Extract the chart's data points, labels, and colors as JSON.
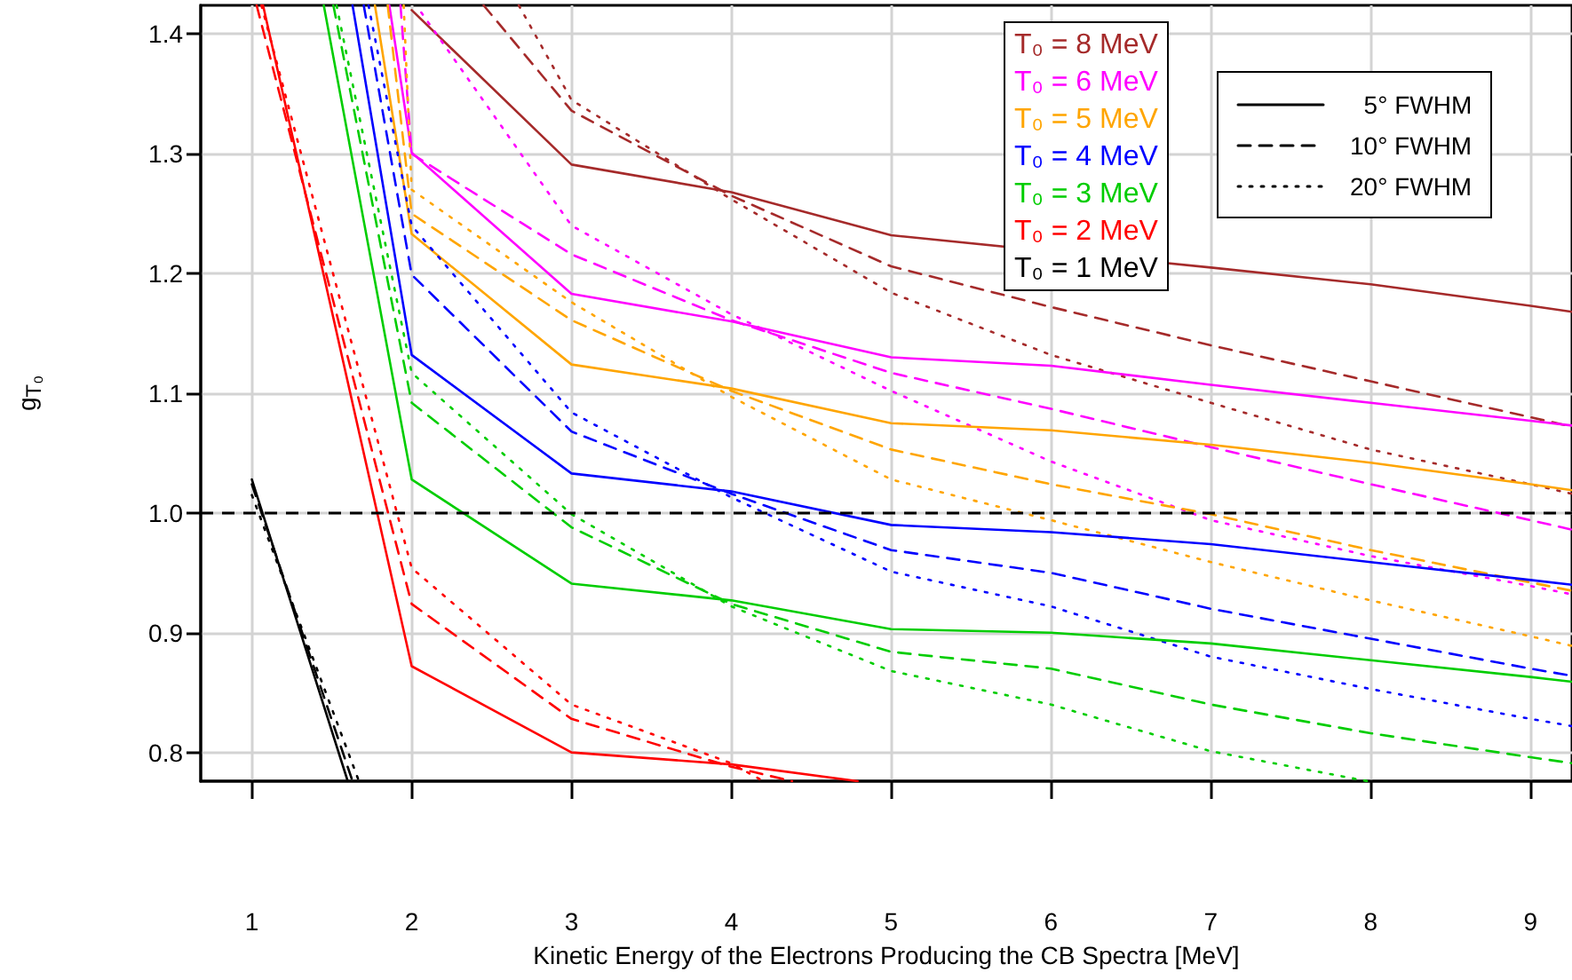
{
  "chart_data": {
    "type": "line",
    "xlabel": "Kinetic Energy of the Electrons Producing the CB Spectra [MeV]",
    "ylabel": "g$_{T₀}$",
    "xlim": [
      0.68,
      9.26
    ],
    "xticks": [
      1,
      2,
      3,
      4,
      5,
      6,
      7,
      8,
      9
    ],
    "ylim": [
      0.776,
      1.424
    ],
    "yticks": [
      0.8,
      0.9,
      {
        "value": 1,
        "label": "1.0"
      },
      1.1,
      1.2,
      1.3,
      1.4
    ],
    "grid": true,
    "legend": "top right",
    "marker": "none",
    "ref_lines": [
      {
        "axis": "y",
        "value": 1,
        "color": "#000000",
        "line_style": "dashed"
      }
    ],
    "annotations": [
      "5° FWHM",
      "10° FWHM",
      "20° FWHM"
    ],
    "series": [
      {
        "name": "T₀ = 8 MeV",
        "color": "#a52a2a",
        "line_style": "solid",
        "x": [
          2,
          3,
          4,
          5,
          7,
          8,
          9,
          9.26
        ],
        "values": [
          1.42,
          1.291,
          1.268,
          1.232,
          1.205,
          1.191,
          1.173,
          1.168
        ]
      },
      {
        "color": "#a52a2a",
        "line_style": "dashed",
        "x": [
          2.45,
          3,
          4,
          5,
          6,
          7,
          8,
          9,
          9.26
        ],
        "values": [
          1.424,
          1.336,
          1.265,
          1.206,
          1.172,
          1.14,
          1.11,
          1.08,
          1.072
        ]
      },
      {
        "color": "#a52a2a",
        "line_style": "dotted",
        "x": [
          2.67,
          3,
          4,
          5,
          6,
          7,
          8,
          9,
          9.26
        ],
        "values": [
          1.424,
          1.345,
          1.262,
          1.184,
          1.132,
          1.092,
          1.053,
          1.024,
          1.016
        ]
      },
      {
        "name": "T₀ = 6 MeV",
        "color": "#ff00ff",
        "line_style": "solid",
        "x": [
          1.86,
          2,
          3,
          4,
          5,
          6,
          7,
          8,
          9,
          9.26
        ],
        "values": [
          1.424,
          1.301,
          1.183,
          1.16,
          1.13,
          1.123,
          1.107,
          1.092,
          1.077,
          1.073
        ]
      },
      {
        "color": "#ff00ff",
        "line_style": "dashed",
        "x": [
          1.93,
          2,
          3,
          4,
          5,
          6,
          7,
          8,
          9,
          9.26
        ],
        "values": [
          1.424,
          1.3,
          1.216,
          1.161,
          1.117,
          1.087,
          1.055,
          1.024,
          0.994,
          0.986
        ]
      },
      {
        "color": "#ff00ff",
        "line_style": "dotted",
        "x": [
          2.06,
          3,
          4,
          5,
          6,
          7,
          8,
          9,
          9.26
        ],
        "values": [
          1.418,
          1.24,
          1.166,
          1.102,
          1.043,
          0.994,
          0.964,
          0.939,
          0.932
        ]
      },
      {
        "name": "T₀ = 5 MeV",
        "color": "#ffa500",
        "line_style": "solid",
        "x": [
          1.77,
          2,
          3,
          4,
          5,
          6,
          7,
          8,
          9,
          9.26
        ],
        "values": [
          1.424,
          1.233,
          1.124,
          1.104,
          1.075,
          1.069,
          1.057,
          1.042,
          1.024,
          1.019
        ]
      },
      {
        "color": "#ffa500",
        "line_style": "dashed",
        "x": [
          1.85,
          2,
          3,
          4,
          5,
          6,
          7,
          8,
          9,
          9.26
        ],
        "values": [
          1.424,
          1.25,
          1.161,
          1.102,
          1.053,
          1.024,
          0.999,
          0.969,
          0.942,
          0.935
        ]
      },
      {
        "color": "#ffa500",
        "line_style": "dotted",
        "x": [
          1.95,
          2,
          3,
          4,
          5,
          6,
          7,
          8,
          9,
          9.26
        ],
        "values": [
          1.424,
          1.27,
          1.176,
          1.097,
          1.028,
          0.994,
          0.959,
          0.927,
          0.897,
          0.889
        ]
      },
      {
        "name": "T₀ = 4 MeV",
        "color": "#0000ff",
        "line_style": "solid",
        "x": [
          1.63,
          2,
          3,
          4,
          5,
          6,
          7,
          8,
          9,
          9.26
        ],
        "values": [
          1.424,
          1.132,
          1.033,
          1.018,
          0.99,
          0.984,
          0.974,
          0.959,
          0.944,
          0.94
        ]
      },
      {
        "color": "#0000ff",
        "line_style": "dashed",
        "x": [
          1.7,
          2,
          3,
          4,
          5,
          6,
          7,
          8,
          9,
          9.26
        ],
        "values": [
          1.424,
          1.199,
          1.068,
          1.016,
          0.969,
          0.95,
          0.92,
          0.895,
          0.87,
          0.864
        ]
      },
      {
        "color": "#0000ff",
        "line_style": "dotted",
        "x": [
          1.73,
          2,
          3,
          4,
          5,
          6,
          7,
          8,
          9,
          9.26
        ],
        "values": [
          1.424,
          1.24,
          1.084,
          1.013,
          0.951,
          0.922,
          0.88,
          0.853,
          0.828,
          0.822
        ]
      },
      {
        "name": "T₀ = 3 MeV",
        "color": "#00cd00",
        "line_style": "solid",
        "x": [
          1.45,
          2,
          3,
          4,
          5,
          6,
          7,
          8,
          9,
          9.26
        ],
        "values": [
          1.424,
          1.028,
          0.941,
          0.927,
          0.903,
          0.9,
          0.891,
          0.877,
          0.863,
          0.859
        ]
      },
      {
        "color": "#00cd00",
        "line_style": "dashed",
        "x": [
          1.51,
          2,
          3,
          4,
          5,
          6,
          7,
          8,
          9,
          9.26
        ],
        "values": [
          1.424,
          1.092,
          0.988,
          0.924,
          0.884,
          0.87,
          0.84,
          0.816,
          0.796,
          0.791
        ]
      },
      {
        "color": "#00cd00",
        "line_style": "dotted",
        "x": [
          1.53,
          2,
          3,
          4,
          5,
          6,
          7,
          7.98
        ],
        "values": [
          1.424,
          1.117,
          0.999,
          0.922,
          0.868,
          0.84,
          0.801,
          0.776
        ]
      },
      {
        "name": "T₀ = 2 MeV",
        "color": "#ff0000",
        "line_style": "solid",
        "x": [
          1.07,
          2,
          3,
          4,
          4.79
        ],
        "values": [
          1.424,
          0.872,
          0.8,
          0.79,
          0.776
        ]
      },
      {
        "color": "#ff0000",
        "line_style": "dashed",
        "x": [
          1.03,
          2,
          3,
          4,
          4.38
        ],
        "values": [
          1.424,
          0.924,
          0.828,
          0.788,
          0.776
        ]
      },
      {
        "color": "#ff0000",
        "line_style": "dotted",
        "x": [
          1.06,
          2,
          3,
          4,
          4.2
        ],
        "values": [
          1.424,
          0.954,
          0.84,
          0.791,
          0.776
        ]
      },
      {
        "name": "T₀ = 1 MeV",
        "color": "#000000",
        "line_style": "solid",
        "x": [
          1,
          1.6
        ],
        "values": [
          1.028,
          0.776
        ]
      },
      {
        "color": "#000000",
        "line_style": "dashed",
        "x": [
          1,
          1.63
        ],
        "values": [
          1.024,
          0.776
        ]
      },
      {
        "color": "#000000",
        "line_style": "dotted",
        "x": [
          1,
          1.67
        ],
        "values": [
          1.015,
          0.776
        ]
      }
    ]
  }
}
